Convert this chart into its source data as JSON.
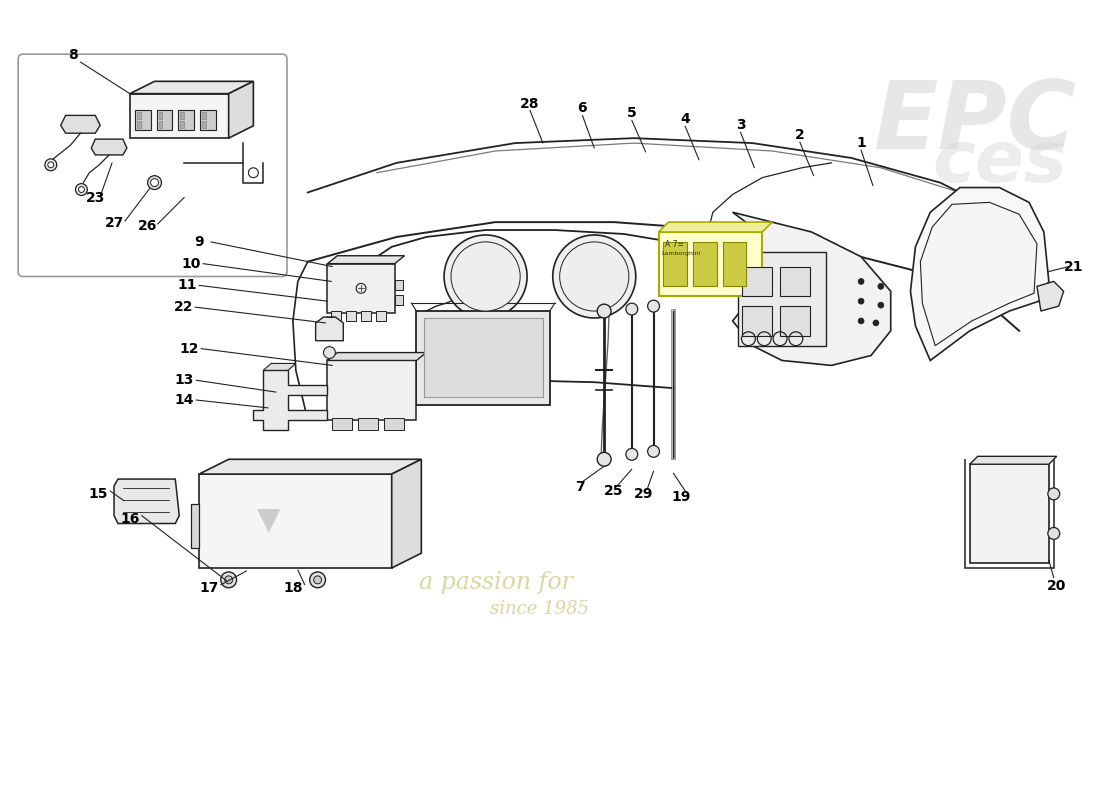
{
  "background_color": "#ffffff",
  "fig_width": 11.0,
  "fig_height": 8.0,
  "watermark_text1": "a passion for",
  "watermark_text2": "since 1985",
  "watermark_color": "#d8d8a0",
  "line_color": "#222222",
  "label_color": "#000000",
  "label_fontsize": 10,
  "inset_border_color": "#999999",
  "callout_color": "#cccc00",
  "logo_text1": "EPC",
  "logo_text2": "ces",
  "logo_color": "#cccccc"
}
